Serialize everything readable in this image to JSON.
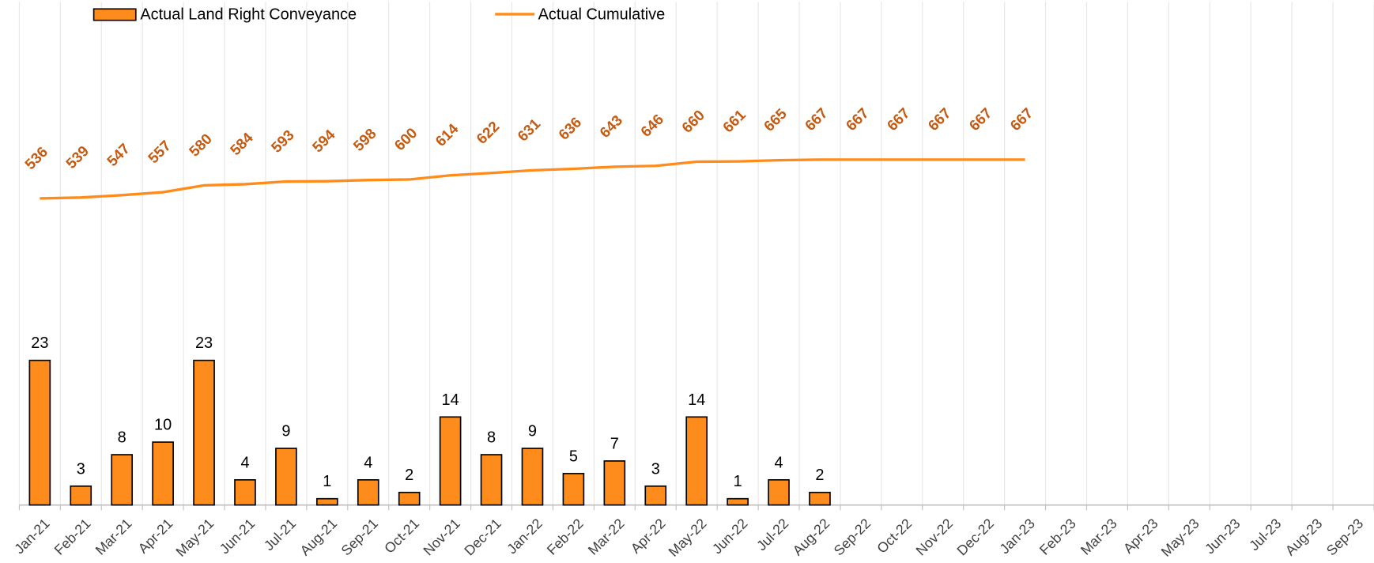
{
  "chart_data": {
    "type": "bar-line",
    "categories": [
      "Jan-21",
      "Feb-21",
      "Mar-21",
      "Apr-21",
      "May-21",
      "Jun-21",
      "Jul-21",
      "Aug-21",
      "Sep-21",
      "Oct-21",
      "Nov-21",
      "Dec-21",
      "Jan-22",
      "Feb-22",
      "Mar-22",
      "Apr-22",
      "May-22",
      "Jun-22",
      "Jul-22",
      "Aug-22",
      "Sep-22",
      "Oct-22",
      "Nov-22",
      "Dec-22",
      "Jan-23",
      "Feb-23",
      "Mar-23",
      "Apr-23",
      "May-23",
      "Jun-23",
      "Jul-23",
      "Aug-23",
      "Sep-23"
    ],
    "series": [
      {
        "name": "Actual Land Right Conveyance",
        "type": "bar",
        "color": "#fd8c1c",
        "values": [
          23,
          3,
          8,
          10,
          23,
          4,
          9,
          1,
          4,
          2,
          14,
          8,
          9,
          5,
          7,
          3,
          14,
          1,
          4,
          2,
          null,
          null,
          null,
          null,
          null,
          null,
          null,
          null,
          null,
          null,
          null,
          null,
          null
        ]
      },
      {
        "name": "Actual Cumulative",
        "type": "line",
        "axis": "y2",
        "color": "#ff8c1a",
        "label_color": "#c55a11",
        "values": [
          536,
          539,
          547,
          557,
          580,
          584,
          593,
          594,
          598,
          600,
          614,
          622,
          631,
          636,
          643,
          646,
          660,
          661,
          665,
          667,
          667,
          667,
          667,
          667,
          667,
          null,
          null,
          null,
          null,
          null,
          null,
          null,
          null
        ]
      }
    ],
    "ylim": [
      0,
      80
    ],
    "y2lim": [
      -500,
      1200
    ],
    "grid": true
  }
}
